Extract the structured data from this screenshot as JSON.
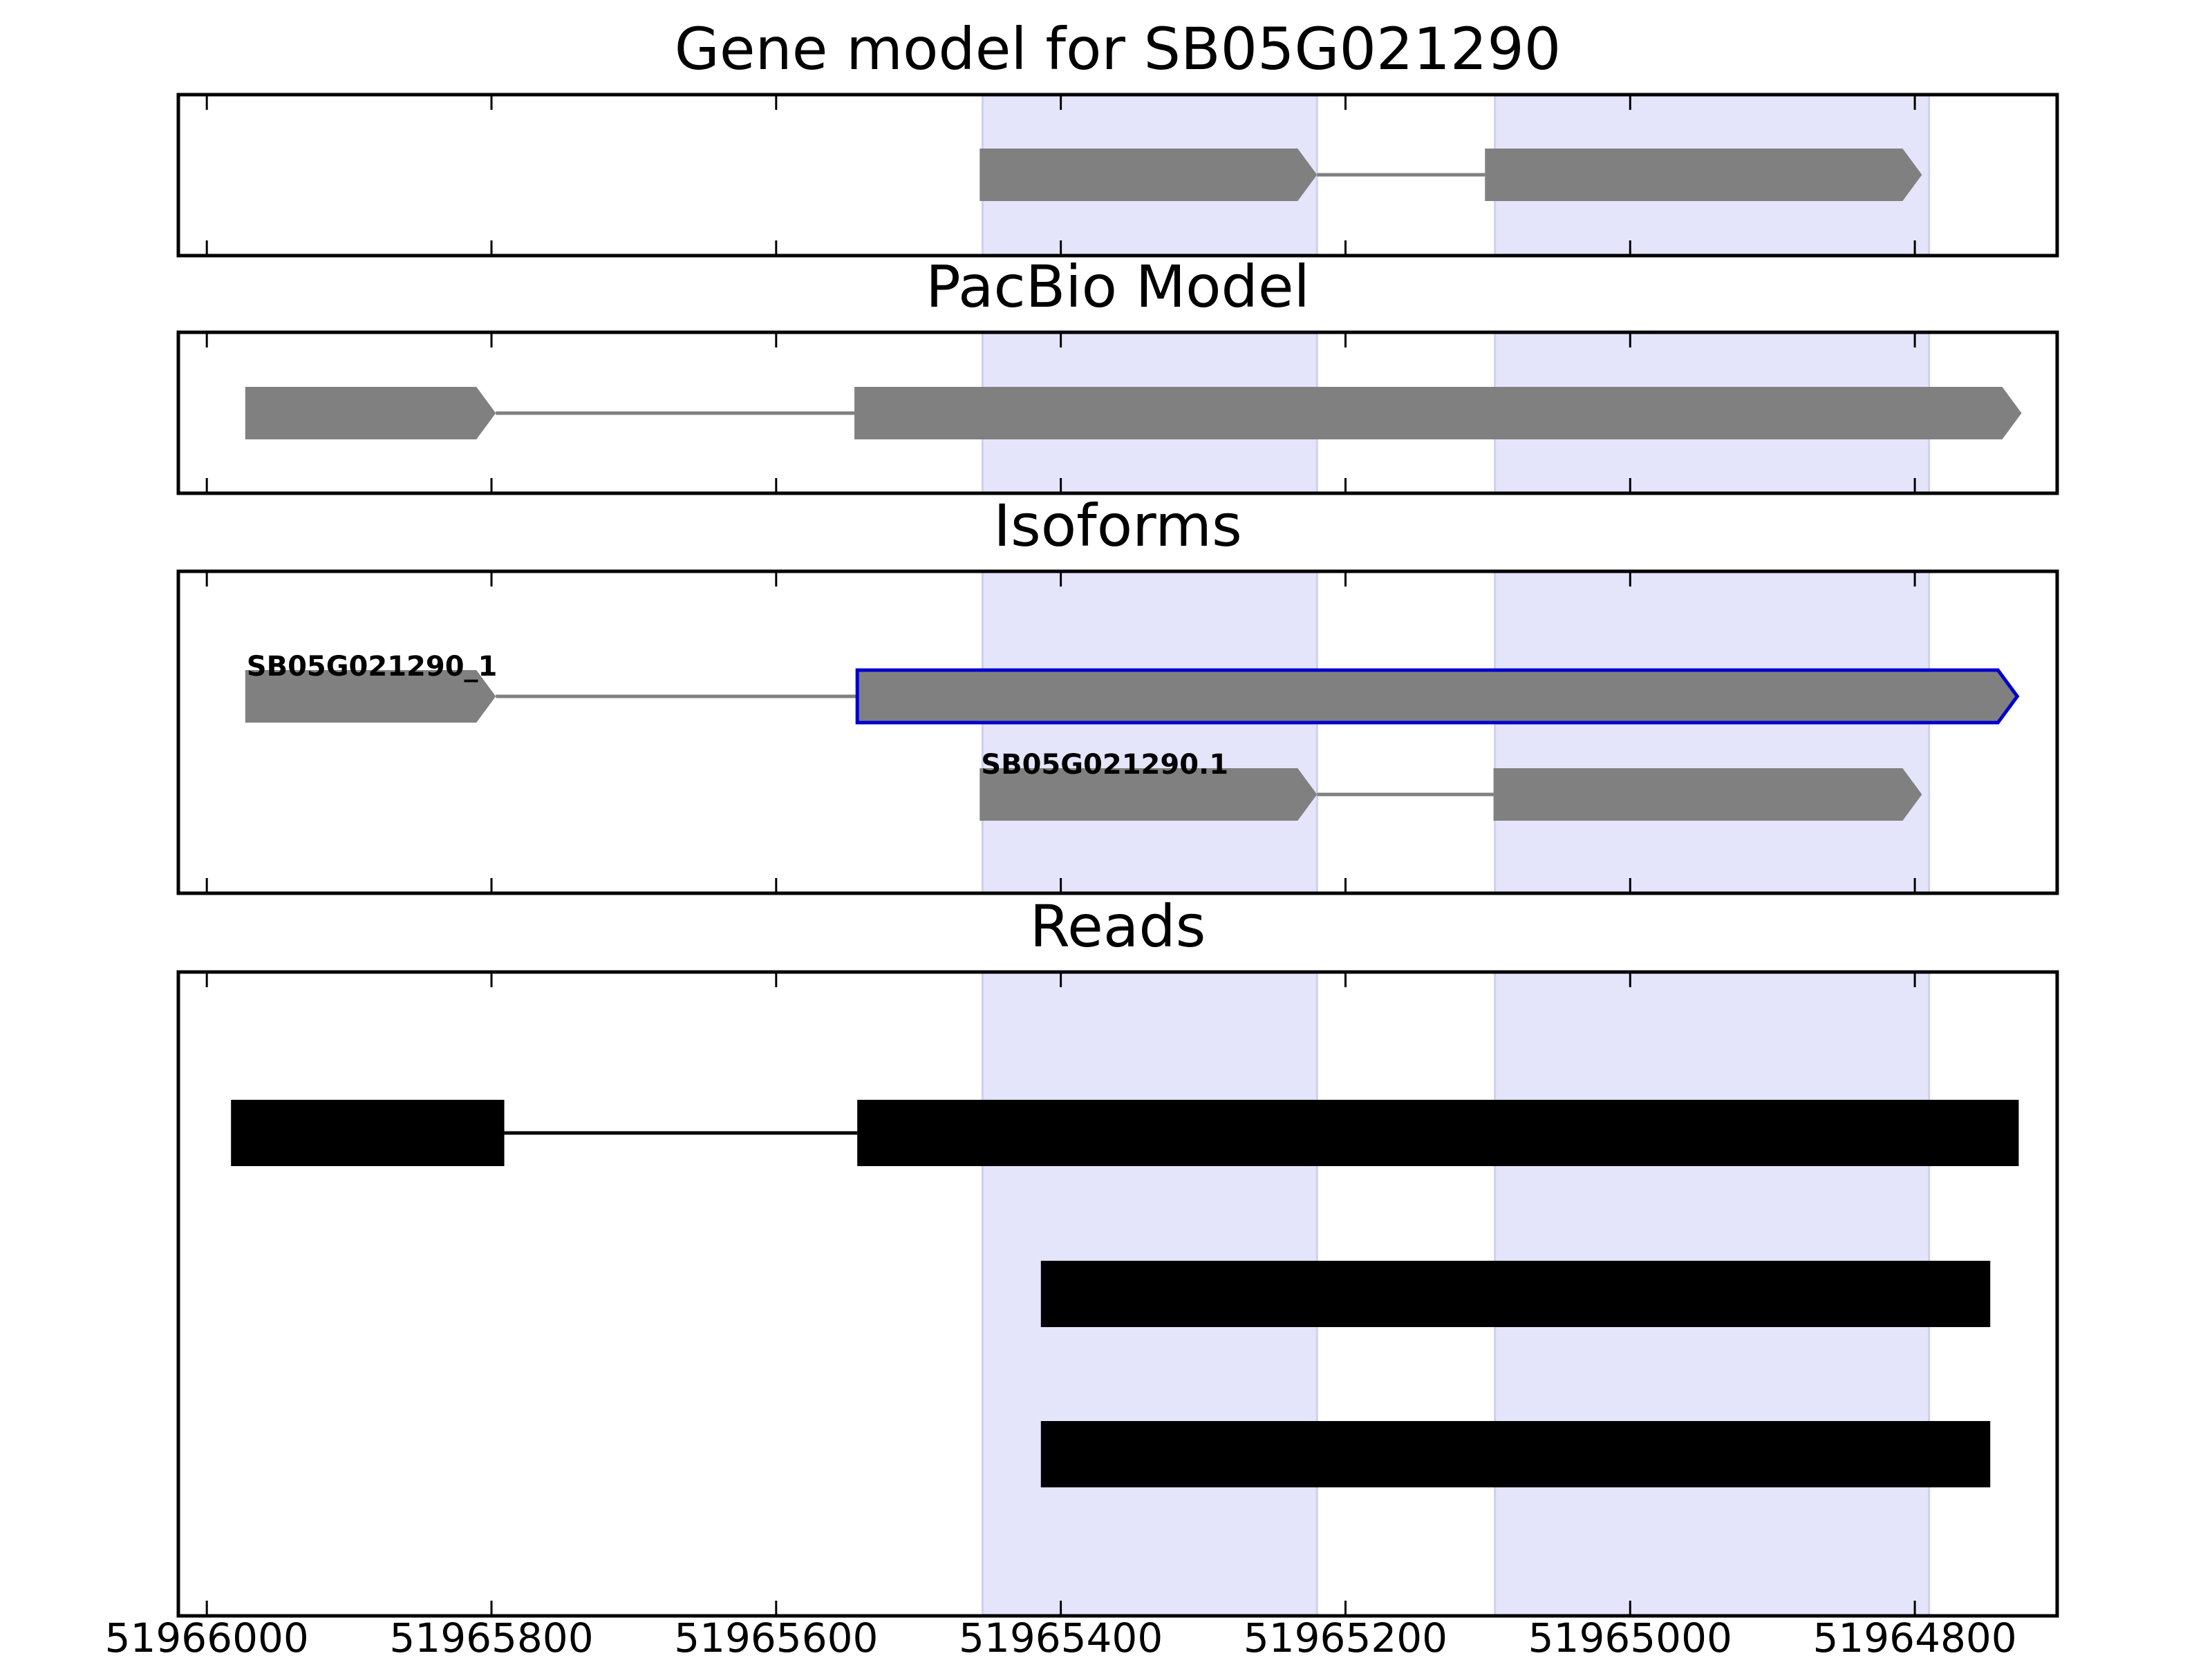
{
  "chart_data": {
    "type": "gene-track",
    "xlim": [
      51966020,
      51964700
    ],
    "x_ticks": [
      51966000,
      51965800,
      51965600,
      51965400,
      51965200,
      51965000,
      51964800
    ],
    "x_tick_labels": [
      "51966000",
      "51965800",
      "51965600",
      "51965400",
      "51965200",
      "51965000",
      "51964800"
    ],
    "highlight_regions": [
      [
        51965455,
        51965220
      ],
      [
        51965095,
        51964790
      ]
    ],
    "highlight_color": "#e4e4fb",
    "feature_color": "#808080",
    "read_color": "#000000",
    "selected_outline_color": "#0000cc",
    "panels": [
      {
        "title": "Gene model for SB05G021290",
        "tracks": [
          {
            "exons": [
              [
                51965457,
                51965220
              ],
              [
                51965102,
                51964795
              ]
            ],
            "style": "arrow"
          }
        ]
      },
      {
        "title": "PacBio Model",
        "tracks": [
          {
            "exons": [
              [
                51965973,
                51965797
              ],
              [
                51965545,
                51964725
              ]
            ],
            "style": "arrow"
          }
        ]
      },
      {
        "title": "Isoforms",
        "tracks": [
          {
            "label": "SB05G021290_1",
            "exons": [
              [
                51965973,
                51965797
              ],
              [
                51965543,
                51964728
              ]
            ],
            "style": "arrow",
            "selected_exon": 1
          },
          {
            "label": "SB05G021290.1",
            "exons": [
              [
                51965457,
                51965220
              ],
              [
                51965096,
                51964795
              ]
            ],
            "style": "arrow"
          }
        ]
      },
      {
        "title": "Reads",
        "tracks": [
          {
            "exons": [
              [
                51965983,
                51965791
              ],
              [
                51965543,
                51964727
              ]
            ],
            "style": "box"
          },
          {
            "exons": [
              [
                51965414,
                51964747
              ]
            ],
            "style": "box"
          },
          {
            "exons": [
              [
                51965414,
                51964747
              ]
            ],
            "style": "box"
          }
        ]
      }
    ]
  }
}
